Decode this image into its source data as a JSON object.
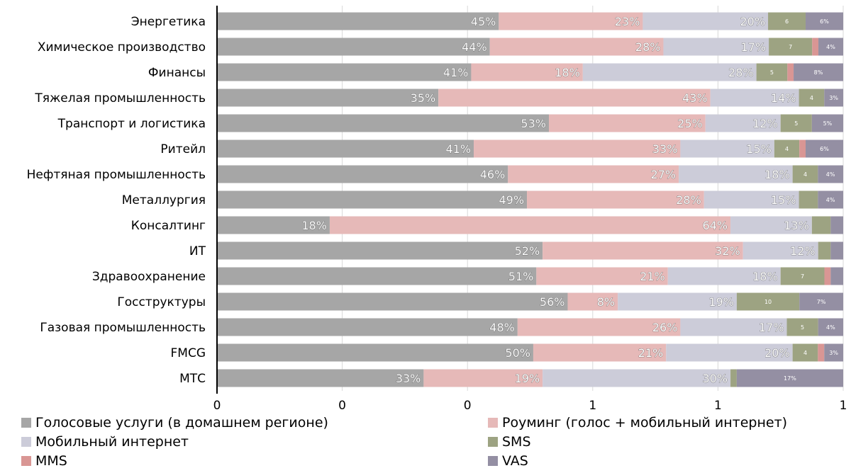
{
  "chart_data": {
    "type": "bar",
    "orientation": "horizontal",
    "stacked": true,
    "categories": [
      "Энергетика",
      "Химическое производство",
      "Финансы",
      "Тяжелая промышленность",
      "Транспорт и логистика",
      "Ритейл",
      "Нефтяная промышленность",
      "Металлургия",
      "Консалтинг",
      "ИТ",
      "Здравоохранение",
      "Госструктуры",
      "Газовая промышленность",
      "FMCG",
      "МТС"
    ],
    "x_ticks": [
      "0",
      "0",
      "0",
      "1",
      "1",
      "1"
    ],
    "xlim": [
      0,
      1
    ],
    "grid": true,
    "legend_position": "bottom",
    "series": [
      {
        "name": "Голосовые услуги (в домашнем регионе)",
        "color": "#a6a6a6",
        "values": [
          0.45,
          0.44,
          0.41,
          0.35,
          0.53,
          0.41,
          0.46,
          0.49,
          0.18,
          0.52,
          0.51,
          0.56,
          0.48,
          0.5,
          0.33
        ],
        "labels": [
          "45%",
          "44%",
          "41%",
          "35%",
          "53%",
          "41%",
          "46%",
          "49%",
          "18%",
          "52%",
          "51%",
          "56%",
          "48%",
          "50%",
          "33%"
        ]
      },
      {
        "name": "Роуминг (голос + мобильный интернет)",
        "color": "#e6b9b8",
        "values": [
          0.23,
          0.28,
          0.18,
          0.43,
          0.25,
          0.33,
          0.27,
          0.28,
          0.64,
          0.32,
          0.21,
          0.08,
          0.26,
          0.21,
          0.19
        ],
        "labels": [
          "23%",
          "28%",
          "18%",
          "43%",
          "25%",
          "33%",
          "27%",
          "28%",
          "64%",
          "32%",
          "21%",
          "8%",
          "26%",
          "21%",
          "19%"
        ]
      },
      {
        "name": "Мобильный интернет",
        "color": "#ccccd9",
        "values": [
          0.2,
          0.17,
          0.28,
          0.14,
          0.12,
          0.15,
          0.18,
          0.15,
          0.13,
          0.12,
          0.18,
          0.19,
          0.17,
          0.2,
          0.3
        ],
        "labels": [
          "20%",
          "17%",
          "28%",
          "14%",
          "12%",
          "15%",
          "18%",
          "15%",
          "13%",
          "12%",
          "18%",
          "19%",
          "17%",
          "20%",
          "30%"
        ]
      },
      {
        "name": "SMS",
        "color": "#9da382",
        "values": [
          0.06,
          0.07,
          0.05,
          0.04,
          0.05,
          0.04,
          0.04,
          0.03,
          0.03,
          0.02,
          0.07,
          0.1,
          0.05,
          0.04,
          0.01
        ],
        "labels": [
          "6",
          "7",
          "5",
          "4",
          "5",
          "4",
          "4",
          "",
          "",
          "",
          "7",
          "10",
          "5",
          "4",
          ""
        ]
      },
      {
        "name": "MMS",
        "color": "#d99694",
        "values": [
          0.0,
          0.01,
          0.01,
          0.0,
          0.0,
          0.01,
          0.0,
          0.0,
          0.0,
          0.0,
          0.01,
          0.0,
          0.0,
          0.01,
          0.0
        ],
        "labels": [
          "",
          "",
          "",
          "",
          "",
          "",
          "",
          "",
          "",
          "",
          "",
          "",
          "",
          "",
          ""
        ]
      },
      {
        "name": "VAS",
        "color": "#948fa3",
        "values": [
          0.06,
          0.04,
          0.08,
          0.03,
          0.05,
          0.06,
          0.04,
          0.04,
          0.02,
          0.02,
          0.02,
          0.07,
          0.04,
          0.03,
          0.17
        ],
        "labels": [
          "6%",
          "4%",
          "8%",
          "3%",
          "5%",
          "6%",
          "4%",
          "4%",
          "",
          "",
          "",
          "7%",
          "4%",
          "3%",
          "17%"
        ]
      }
    ]
  }
}
